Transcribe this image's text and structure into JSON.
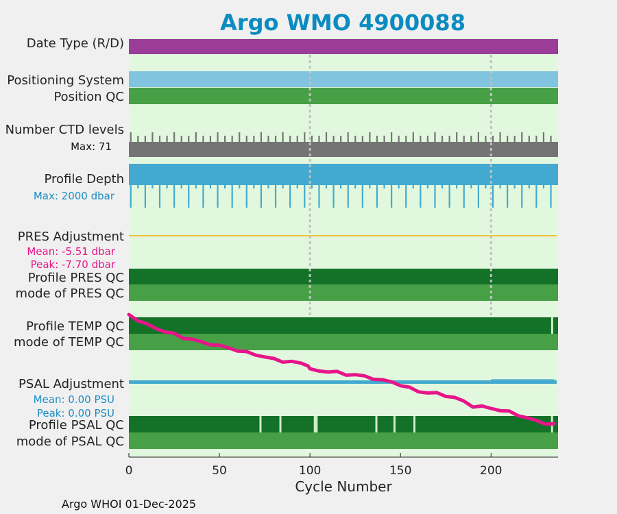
{
  "chart_data": {
    "type": "bar",
    "title": "Argo WMO 4900088",
    "xlabel": "Cycle Number",
    "xlim": [
      0,
      237
    ],
    "xticks": [
      0,
      50,
      100,
      150,
      200
    ],
    "vertical_markers": [
      100,
      200
    ],
    "rows": {
      "date_type": "Date Type (R/D)",
      "positioning_system": "Positioning System",
      "position_qc": "Position QC",
      "ctd_levels": "Number CTD levels",
      "ctd_max": "Max: 71",
      "profile_depth": "Profile Depth",
      "depth_max": "Max: 2000 dbar",
      "pres_adjustment": "PRES Adjustment",
      "pres_mean": "Mean: -5.51 dbar",
      "pres_peak": "Peak: -7.70 dbar",
      "profile_pres_qc": "Profile PRES QC",
      "mode_pres_qc": "mode of PRES QC",
      "profile_temp_qc": "Profile TEMP QC",
      "mode_temp_qc": "mode of TEMP QC",
      "psal_adjustment": "PSAL Adjustment",
      "psal_mean": "Mean: 0.00 PSU",
      "psal_peak": "Peak: 0.00 PSU",
      "profile_psal_qc": "Profile PSAL QC",
      "mode_psal_qc": "mode of PSAL QC"
    },
    "temp_qc_gaps": [
      233
    ],
    "psal_qc_gaps": [
      72,
      83,
      102,
      103,
      136,
      146,
      157,
      233
    ],
    "pres_adjustment_curve": {
      "name": "PRES Adjustment",
      "x": [
        0,
        5,
        10,
        15,
        20,
        25,
        30,
        35,
        40,
        45,
        50,
        55,
        60,
        65,
        70,
        75,
        80,
        85,
        90,
        95,
        99,
        100,
        105,
        110,
        115,
        120,
        125,
        130,
        135,
        140,
        145,
        150,
        155,
        160,
        165,
        170,
        175,
        180,
        185,
        190,
        195,
        200,
        205,
        210,
        215,
        220,
        225,
        230,
        235
      ],
      "y": [
        -3.5,
        -3.7,
        -3.9,
        -4.0,
        -4.15,
        -4.25,
        -4.35,
        -4.45,
        -4.55,
        -4.6,
        -4.7,
        -4.75,
        -4.85,
        -4.95,
        -5.0,
        -5.1,
        -5.2,
        -5.25,
        -5.3,
        -5.35,
        -5.4,
        -5.6,
        -5.62,
        -5.65,
        -5.7,
        -5.75,
        -5.78,
        -5.85,
        -5.9,
        -6.0,
        -6.05,
        -6.15,
        -6.3,
        -6.4,
        -6.45,
        -6.5,
        -6.55,
        -6.65,
        -6.8,
        -6.95,
        -7.0,
        -7.05,
        -7.1,
        -7.2,
        -7.3,
        -7.4,
        -7.55,
        -7.6,
        -7.65
      ]
    }
  },
  "footer": "Argo WHOI 01-Dec-2025",
  "colors": {
    "title": "#0a8cc0",
    "plot_bg": "#e2f8de",
    "page_bg": "#f0f0f0",
    "date_type": "#9a3c98",
    "positioning": "#80c4e0",
    "qc_light": "#47a046",
    "qc_dark": "#137128",
    "ctd": "#747474",
    "depth": "#42aad0",
    "pres_line": "#f0c040",
    "psal_line": "#42aad0",
    "curve": "#e6158a",
    "gap": "#d0ecc8",
    "marker": "#c0c0c0"
  }
}
